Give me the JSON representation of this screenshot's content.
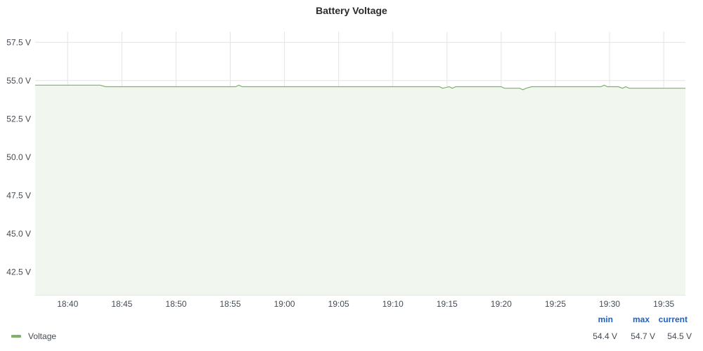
{
  "panel": {
    "title": "Battery Voltage"
  },
  "legend": {
    "headers": {
      "min": "min",
      "max": "max",
      "current": "current"
    },
    "series_name": "Voltage",
    "values": {
      "min": "54.4 V",
      "max": "54.7 V",
      "current": "54.5 V"
    }
  },
  "colors": {
    "series_line": "#7eb26d",
    "series_fill": "#f1f7ee",
    "grid": "#e4e4e4",
    "axis": "#cccccc"
  },
  "chart_data": {
    "type": "area",
    "title": "Battery Voltage",
    "unit": "V",
    "y_ticks": [
      "57.5 V",
      "55.0 V",
      "52.5 V",
      "50.0 V",
      "47.5 V",
      "45.0 V",
      "42.5 V"
    ],
    "y_tick_values": [
      57.5,
      55.0,
      52.5,
      50.0,
      47.5,
      45.0,
      42.5
    ],
    "ylim": [
      41.0,
      58.2
    ],
    "x_ticks": [
      "18:40",
      "18:45",
      "18:50",
      "18:55",
      "19:00",
      "19:05",
      "19:10",
      "19:15",
      "19:20",
      "19:25",
      "19:30",
      "19:35"
    ],
    "x_tick_values": [
      "18:40",
      "18:45",
      "18:50",
      "18:55",
      "19:00",
      "19:05",
      "19:10",
      "19:15",
      "19:20",
      "19:25",
      "19:30",
      "19:35"
    ],
    "xlim": [
      "18:37",
      "19:37"
    ],
    "grid": true,
    "legend_placement": "bottom",
    "series": [
      {
        "name": "Voltage",
        "x": [
          "18:37",
          "18:43",
          "18:43.5",
          "18:55.5",
          "18:55.8",
          "18:56.1",
          "19:14.3",
          "19:14.6",
          "19:15.2",
          "19:15.5",
          "19:15.8",
          "19:16.2",
          "19:20",
          "19:20.3",
          "19:21.7",
          "19:22",
          "19:22.3",
          "19:22.8",
          "19:29.2",
          "19:29.5",
          "19:29.8",
          "19:30.8",
          "19:31.2",
          "19:31.5",
          "19:31.8",
          "19:37"
        ],
        "values": [
          54.7,
          54.7,
          54.6,
          54.6,
          54.7,
          54.6,
          54.6,
          54.5,
          54.6,
          54.5,
          54.6,
          54.6,
          54.6,
          54.5,
          54.5,
          54.4,
          54.5,
          54.6,
          54.6,
          54.7,
          54.6,
          54.6,
          54.5,
          54.6,
          54.5,
          54.5
        ]
      }
    ]
  }
}
